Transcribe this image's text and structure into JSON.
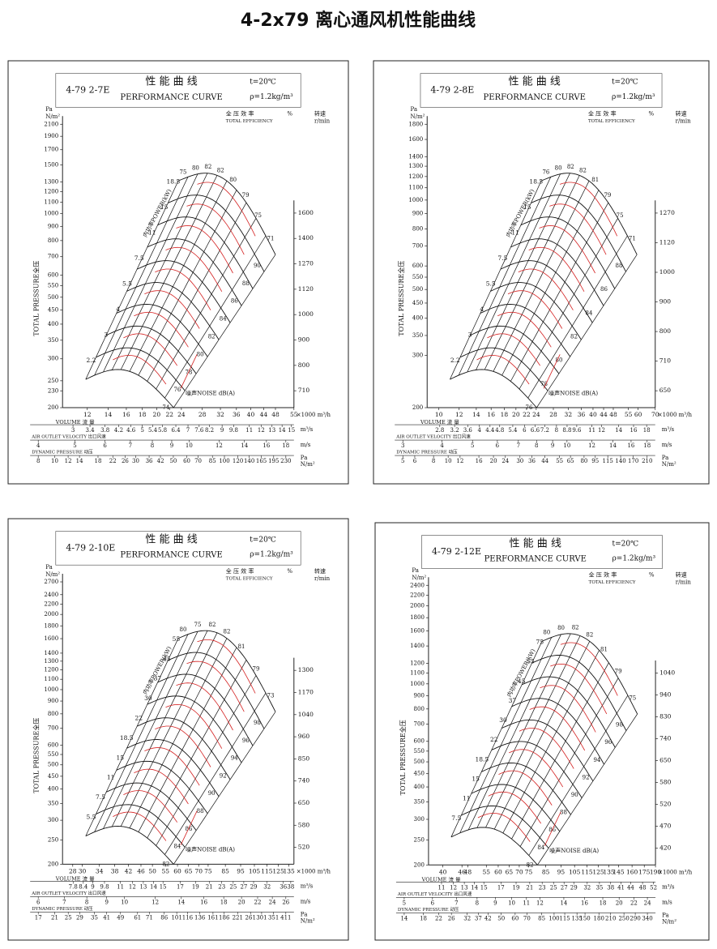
{
  "title": "4-2x79 离心通风机性能曲线",
  "panels": [
    {
      "model": "4-79  2-7E",
      "title_cn": "性 能 曲 线",
      "title_en": "PERFORMANCE CURVE",
      "temperature": "t=20℃",
      "density": "ρ=1.2kg/m³",
      "pressure_unit": [
        "Pa",
        "N/m²"
      ],
      "y_label": "TOTAL PRESSURE全压",
      "efficiency_header": [
        "全 压 效 率",
        "TOTAL EFFICIENCY",
        "%"
      ],
      "speed_header": [
        "转速",
        "r/min"
      ],
      "power_label": "内功率POWER(kW)",
      "noise_label": "噪声NOISE dB(A)",
      "ylim": [
        200,
        2100
      ],
      "yticks": [
        200,
        230,
        250,
        300,
        350,
        400,
        450,
        500,
        550,
        600,
        700,
        800,
        900,
        1000,
        1100,
        1200,
        1300,
        1500,
        1700,
        1900,
        2100
      ],
      "volume_label": "VOLUME  流 量",
      "volume_unit": "×1000 m³/h",
      "xlim": [
        10,
        55
      ],
      "volume_ticks": [
        12,
        14,
        16,
        18,
        20,
        22,
        24,
        28,
        32,
        36,
        40,
        44,
        48,
        55
      ],
      "flow_unit": "m³/s",
      "flow_ticks": [
        3,
        3.4,
        3.8,
        4.2,
        4.6,
        5,
        5.4,
        5.8,
        6.4,
        7,
        7.6,
        8.2,
        9,
        9.8,
        11,
        12,
        13,
        14,
        15
      ],
      "velocity_label": "AIR OUTLET VELOCITY 出口风速",
      "velocity_unit": "m/s",
      "velocity_ticks": [
        4,
        5,
        6,
        7,
        8,
        9,
        10,
        12,
        14,
        16,
        18
      ],
      "dynamic_label": "DYNAMIC PRESSURE  动压",
      "dynamic_unit": [
        "Pa",
        "N/m²"
      ],
      "dynamic_ticks": [
        8,
        10,
        12,
        14,
        18,
        22,
        26,
        30,
        36,
        42,
        50,
        60,
        70,
        85,
        100,
        120,
        140,
        165,
        195,
        230
      ],
      "speeds": [
        1600,
        1400,
        1270,
        1120,
        1000,
        900,
        800,
        710
      ],
      "powers": [
        2.2,
        3,
        4,
        5.5,
        7.5,
        11,
        15,
        18.5
      ],
      "efficiencies": [
        75,
        80,
        82,
        82,
        80,
        79,
        75,
        71
      ],
      "noise": [
        74,
        76,
        78,
        80,
        82,
        84,
        86,
        88,
        90
      ]
    },
    {
      "model": "4-79  2-8E",
      "title_cn": "性 能 曲 线",
      "title_en": "PERFORMANCE CURVE",
      "temperature": "t=20℃",
      "density": "ρ=1.2kg/m³",
      "pressure_unit": [
        "Pa",
        "N/m²"
      ],
      "y_label": "TOTAL PRESSURE全压",
      "efficiency_header": [
        "全 压 效 率",
        "TOTAL EFFICIENCY",
        "%"
      ],
      "speed_header": [
        "转速",
        "r/min"
      ],
      "power_label": "内功率POWER(kW)",
      "noise_label": "噪声NOISE dB(A)",
      "ylim": [
        200,
        1800
      ],
      "yticks": [
        200,
        300,
        350,
        400,
        450,
        500,
        550,
        600,
        700,
        800,
        900,
        1000,
        1100,
        1200,
        1300,
        1400,
        1600,
        1800
      ],
      "volume_label": "VOLUME  流 量",
      "volume_unit": "×1000 m³/h",
      "xlim": [
        9,
        70
      ],
      "volume_ticks": [
        10,
        12,
        14,
        16,
        18,
        20,
        22,
        24,
        28,
        32,
        36,
        40,
        44,
        48,
        55,
        60,
        70
      ],
      "flow_unit": "m³/s",
      "flow_ticks": [
        2.8,
        3.2,
        3.6,
        4,
        4.4,
        4.8,
        5.4,
        6,
        6.6,
        7.2,
        8,
        8.8,
        9.6,
        11,
        12,
        14,
        16,
        18
      ],
      "velocity_label": "AIR OUTLET VELOCITY 出口风速",
      "velocity_unit": "m/s",
      "velocity_ticks": [
        3,
        4,
        5,
        6,
        7,
        8,
        9,
        10,
        12,
        14,
        16,
        18
      ],
      "dynamic_label": "DYNAMIC PRESSURE  动压",
      "dynamic_unit": [
        "Pa",
        "N/m²"
      ],
      "dynamic_ticks": [
        5,
        6,
        8,
        10,
        12,
        16,
        20,
        24,
        30,
        36,
        44,
        55,
        65,
        80,
        95,
        115,
        140,
        170,
        210
      ],
      "speeds": [
        1270,
        1120,
        1000,
        900,
        800,
        710,
        650
      ],
      "powers": [
        2.2,
        3,
        4,
        5.5,
        7.5,
        11,
        15,
        18.5
      ],
      "efficiencies": [
        76,
        80,
        82,
        82,
        81,
        79,
        75,
        71
      ],
      "noise": [
        76,
        78,
        80,
        82,
        84,
        86,
        88
      ]
    },
    {
      "model": "4-79  2-10E",
      "title_cn": "性 能 曲 线",
      "title_en": "PERFORMANCE CURVE",
      "temperature": "t=20℃",
      "density": "ρ=1.2kg/m³",
      "pressure_unit": [
        "Pa",
        "N/m²"
      ],
      "y_label": "TOTAL PRESSURE全压",
      "efficiency_header": [
        "全 压 效 率",
        "TOTAL EFFICIENCY",
        "%"
      ],
      "speed_header": [
        "转速",
        "r/min"
      ],
      "power_label": "内功率POWER(kW)",
      "noise_label": "噪声NOISE dB(A)",
      "ylim": [
        200,
        2700
      ],
      "yticks": [
        200,
        250,
        300,
        350,
        400,
        450,
        500,
        550,
        600,
        700,
        800,
        900,
        1000,
        1100,
        1200,
        1300,
        1400,
        1600,
        1800,
        2000,
        2200,
        2400,
        2700
      ],
      "volume_label": "VOLUME  流 量",
      "volume_unit": "×1000 m³/h",
      "xlim": [
        26,
        140
      ],
      "volume_ticks": [
        28,
        30,
        34,
        38,
        42,
        46,
        50,
        55,
        60,
        65,
        70,
        75,
        85,
        95,
        105,
        115,
        125,
        135
      ],
      "flow_unit": "m³/s",
      "flow_ticks": [
        7.8,
        8.4,
        9,
        9.8,
        11,
        12,
        13,
        14,
        15,
        17,
        19,
        21,
        23,
        25,
        27,
        29,
        32,
        36,
        38
      ],
      "velocity_label": "AIR OUTLET VELOCITY 出口风速",
      "velocity_unit": "m/s",
      "velocity_ticks": [
        6,
        7,
        8,
        9,
        10,
        12,
        14,
        16,
        18,
        20,
        22,
        24,
        26
      ],
      "dynamic_label": "DYNAMIC PRESSURE  动压",
      "dynamic_unit": [
        "Pa",
        "N/m²"
      ],
      "dynamic_ticks": [
        17,
        21,
        25,
        29,
        35,
        41,
        49,
        61,
        71,
        86,
        101,
        116,
        136,
        161,
        186,
        221,
        261,
        301,
        351,
        411
      ],
      "speeds": [
        1300,
        1170,
        1040,
        960,
        850,
        740,
        650,
        580,
        520
      ],
      "powers": [
        5.5,
        7.5,
        11,
        15,
        18.5,
        22,
        30,
        37,
        45,
        55
      ],
      "efficiencies": [
        80,
        75,
        82,
        82,
        81,
        79,
        73
      ],
      "noise": [
        82,
        84,
        86,
        88,
        90,
        92,
        94,
        96,
        98
      ]
    },
    {
      "model": "4-79  2-12E",
      "title_cn": "性 能 曲 线",
      "title_en": "PERFORMANCE CURVE",
      "temperature": "t=20℃",
      "density": "ρ=1.2kg/m³",
      "pressure_unit": [
        "Pa",
        "N/m²"
      ],
      "y_label": "TOTAL PRESSURE全压",
      "efficiency_header": [
        "全 压 效 率",
        "TOTAL EFFICIENCY",
        "%"
      ],
      "speed_header": [
        "转速",
        "r/min"
      ],
      "power_label": "内功率POWER(kW)",
      "noise_label": "噪声NOISE dB(A)",
      "ylim": [
        200,
        2400
      ],
      "yticks": [
        200,
        250,
        300,
        350,
        400,
        450,
        500,
        550,
        600,
        700,
        800,
        900,
        1000,
        1100,
        1200,
        1400,
        1600,
        1800,
        2000,
        2200,
        2400
      ],
      "volume_label": "VOLUME  流 量",
      "volume_unit": "×1000 m³/h",
      "xlim": [
        36,
        190
      ],
      "volume_ticks": [
        40,
        46,
        48,
        55,
        60,
        65,
        70,
        75,
        85,
        95,
        105,
        115,
        125,
        135,
        145,
        160,
        175,
        190
      ],
      "flow_unit": "m³/s",
      "flow_ticks": [
        11,
        12,
        13,
        14,
        15,
        17,
        19,
        21,
        23,
        25,
        27,
        29,
        32,
        35,
        38,
        41,
        44,
        48,
        52
      ],
      "velocity_label": "AIR OUTLET VELOCITY 出口风速",
      "velocity_unit": "m/s",
      "velocity_ticks": [
        5,
        6,
        7,
        8,
        9,
        10,
        11,
        12,
        14,
        16,
        18,
        20,
        22,
        24
      ],
      "dynamic_label": "DYNAMIC PRESSURE  动压",
      "dynamic_unit": [
        "Pa",
        "N/m²"
      ],
      "dynamic_ticks": [
        14,
        18,
        22,
        26,
        32,
        37,
        42,
        50,
        60,
        70,
        85,
        100,
        115,
        135,
        150,
        180,
        210,
        250,
        290,
        340
      ],
      "speeds": [
        1040,
        940,
        830,
        740,
        650,
        580,
        520,
        470,
        420
      ],
      "powers": [
        7.5,
        11,
        15,
        18.5,
        22,
        30,
        37,
        45,
        55,
        75
      ],
      "efficiencies": [
        80,
        80,
        82,
        82,
        81,
        79,
        75
      ],
      "noise": [
        82,
        84,
        86,
        88,
        90,
        92,
        94,
        96,
        98
      ]
    }
  ]
}
